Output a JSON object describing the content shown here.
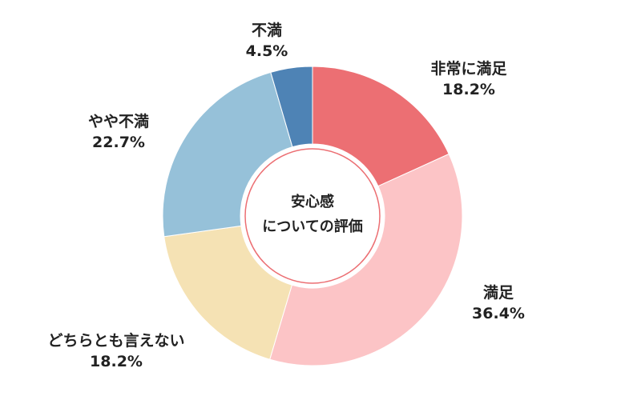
{
  "chart_data": {
    "type": "pie",
    "donut": true,
    "center_label": [
      "安心感",
      "についての評価"
    ],
    "slices": [
      {
        "label": "非常に満足",
        "pct_text": "18.2%",
        "value": 18.2,
        "color": "#EC6F73"
      },
      {
        "label": "満足",
        "pct_text": "36.4%",
        "value": 36.4,
        "color": "#FCC4C6"
      },
      {
        "label": "どちらとも言えない",
        "pct_text": "18.2%",
        "value": 18.2,
        "color": "#F5E2B4"
      },
      {
        "label": "やや不満",
        "pct_text": "22.7%",
        "value": 22.7,
        "color": "#96C1D9"
      },
      {
        "label": "不満",
        "pct_text": "4.5%",
        "value": 4.5,
        "color": "#4E83B5"
      }
    ]
  }
}
